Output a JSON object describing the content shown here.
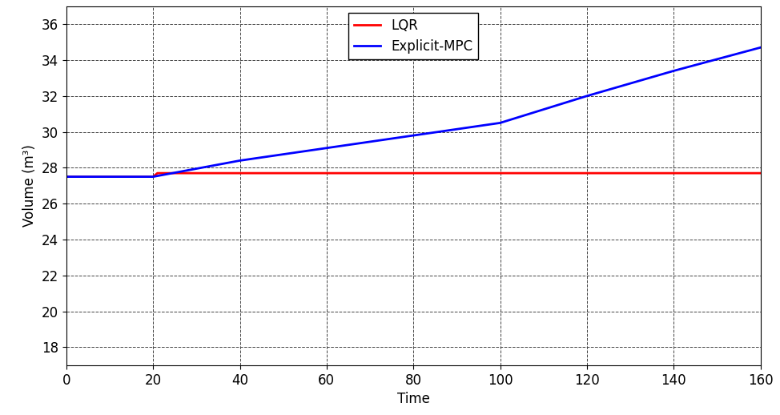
{
  "chart_data": {
    "type": "line",
    "x_label": "Time",
    "y_label": "Volume (m³)",
    "xlim": [
      0,
      160
    ],
    "xticks": [
      0,
      20,
      40,
      60,
      80,
      100,
      120,
      140,
      160
    ],
    "ylim": [
      17,
      37
    ],
    "yticks": [
      18,
      20,
      22,
      24,
      26,
      28,
      30,
      32,
      34,
      36
    ],
    "grid": true,
    "legend": "upper center",
    "series": [
      {
        "name": "LQR",
        "color": "#ff0000",
        "line_style": "solid",
        "x": [
          0,
          20,
          21,
          160
        ],
        "values": [
          27.5,
          27.5,
          27.7,
          27.7
        ]
      },
      {
        "name": "Explicit-MPC",
        "color": "#0000ff",
        "line_style": "solid",
        "x": [
          0,
          20,
          40,
          60,
          80,
          100,
          120,
          140,
          160
        ],
        "values": [
          27.5,
          27.5,
          28.4,
          29.1,
          29.8,
          30.5,
          32.0,
          33.4,
          34.7
        ]
      }
    ]
  }
}
